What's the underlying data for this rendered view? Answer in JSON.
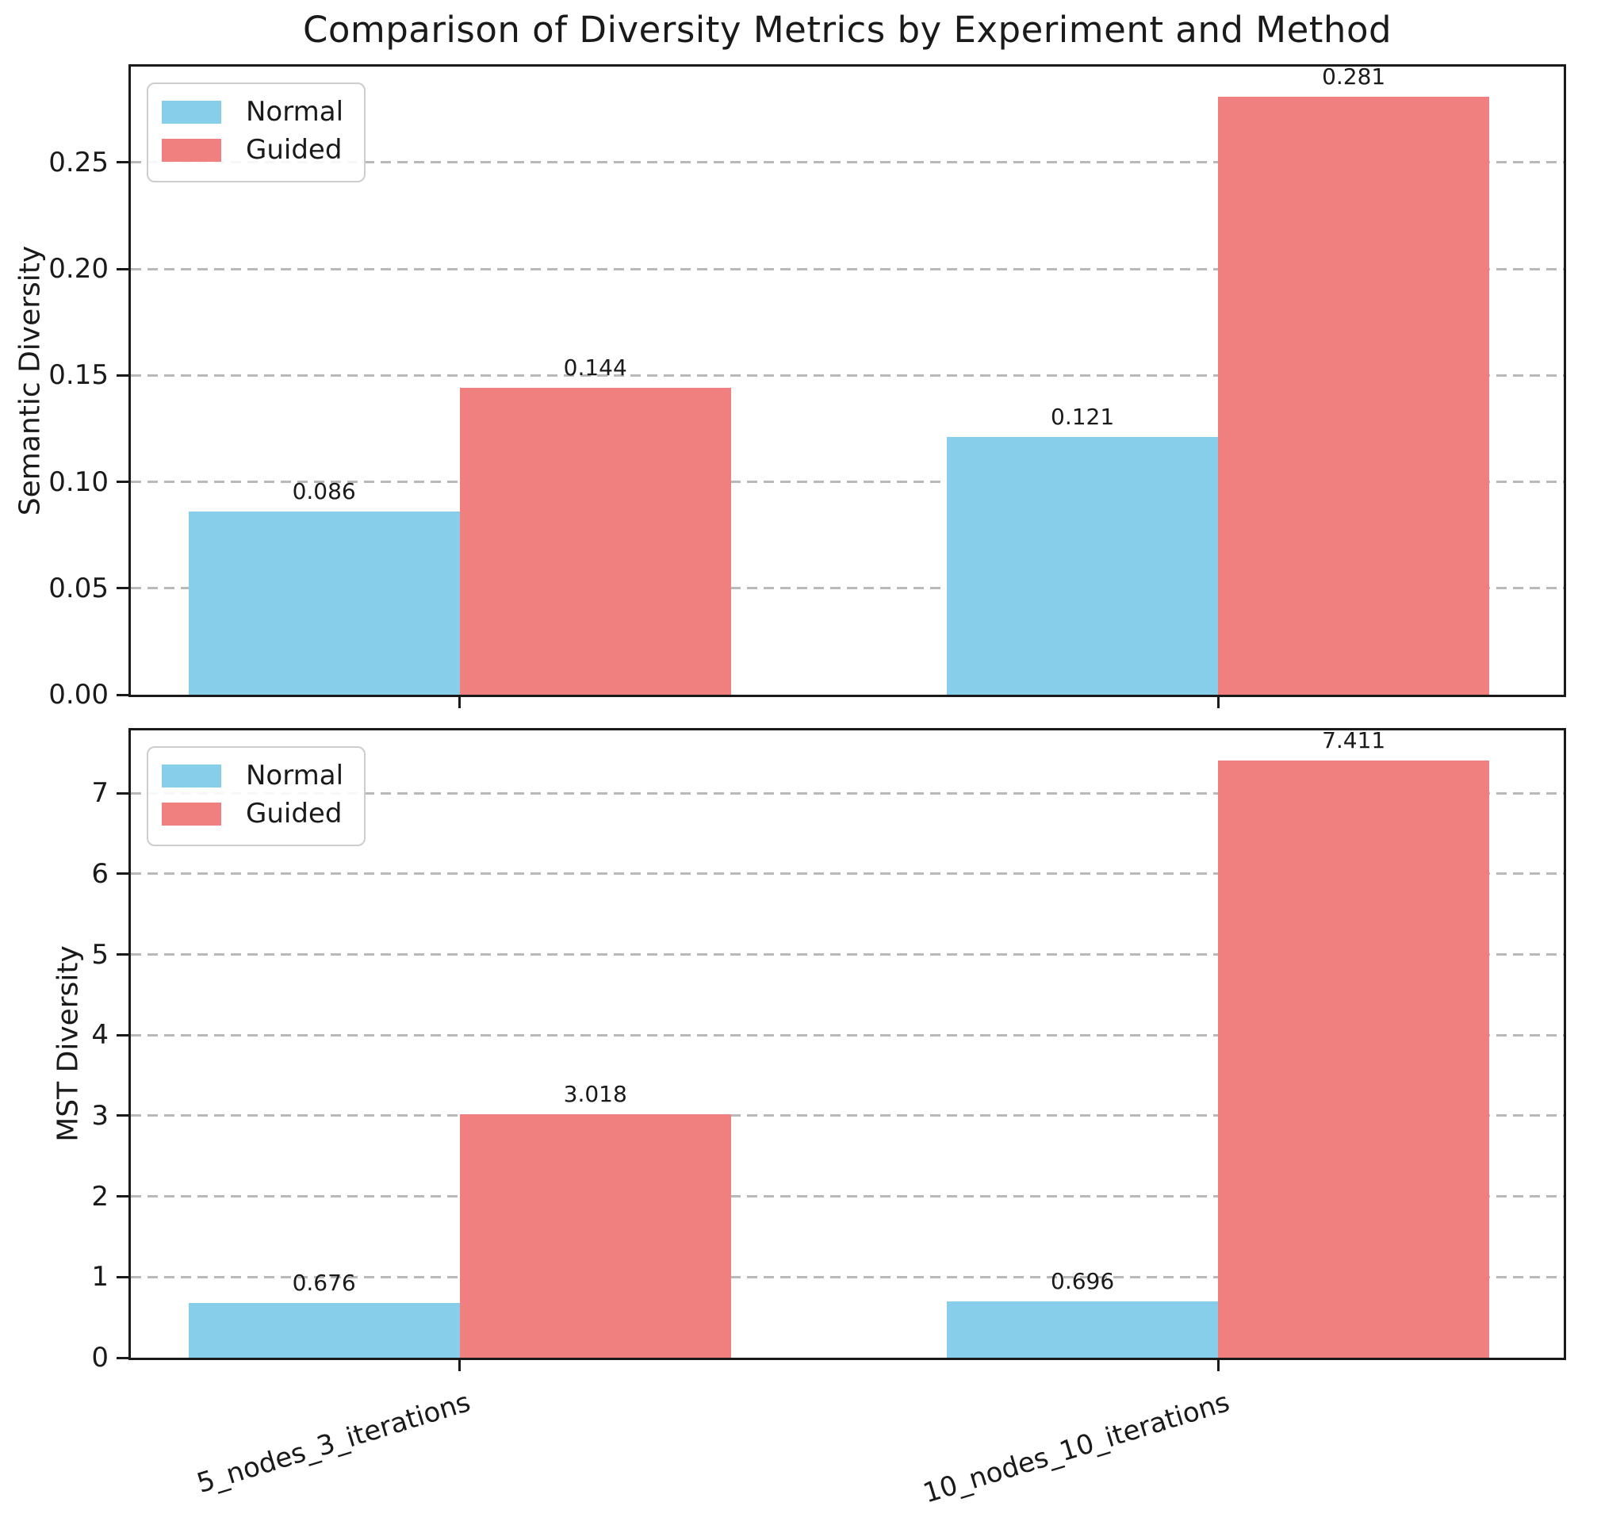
{
  "title": "Comparison of Diversity Metrics by Experiment and Method",
  "colors": {
    "normal": "#87CEEB",
    "guided": "#F08080",
    "grid": "#B9B9B9",
    "spine": "#1A1A1A"
  },
  "chart_data": [
    {
      "type": "bar",
      "name": "semantic-diversity",
      "title": "",
      "xlabel": "",
      "ylabel": "Semantic Diversity",
      "categories": [
        "5_nodes_3_iterations",
        "10_nodes_10_iterations"
      ],
      "series": [
        {
          "name": "Normal",
          "color": "#87CEEB",
          "values": [
            0.086,
            0.121
          ]
        },
        {
          "name": "Guided",
          "color": "#F08080",
          "values": [
            0.144,
            0.281
          ]
        }
      ],
      "value_labels": [
        [
          "0.086",
          "0.121"
        ],
        [
          "0.144",
          "0.281"
        ]
      ],
      "ylim": [
        0,
        0.295
      ],
      "yticks": [
        0,
        0.05,
        0.1,
        0.15,
        0.2,
        0.25
      ],
      "ytick_labels": [
        "0.00",
        "0.05",
        "0.10",
        "0.15",
        "0.20",
        "0.25"
      ],
      "grid": "horizontal-dashed",
      "legend_position": "upper-left"
    },
    {
      "type": "bar",
      "name": "mst-diversity",
      "title": "",
      "xlabel": "",
      "ylabel": "MST Diversity",
      "categories": [
        "5_nodes_3_iterations",
        "10_nodes_10_iterations"
      ],
      "series": [
        {
          "name": "Normal",
          "color": "#87CEEB",
          "values": [
            0.676,
            0.696
          ]
        },
        {
          "name": "Guided",
          "color": "#F08080",
          "values": [
            3.018,
            7.411
          ]
        }
      ],
      "value_labels": [
        [
          "0.676",
          "0.696"
        ],
        [
          "3.018",
          "7.411"
        ]
      ],
      "ylim": [
        0,
        7.78
      ],
      "yticks": [
        0,
        1,
        2,
        3,
        4,
        5,
        6,
        7
      ],
      "ytick_labels": [
        "0",
        "1",
        "2",
        "3",
        "4",
        "5",
        "6",
        "7"
      ],
      "grid": "horizontal-dashed",
      "legend_position": "upper-left"
    }
  ]
}
